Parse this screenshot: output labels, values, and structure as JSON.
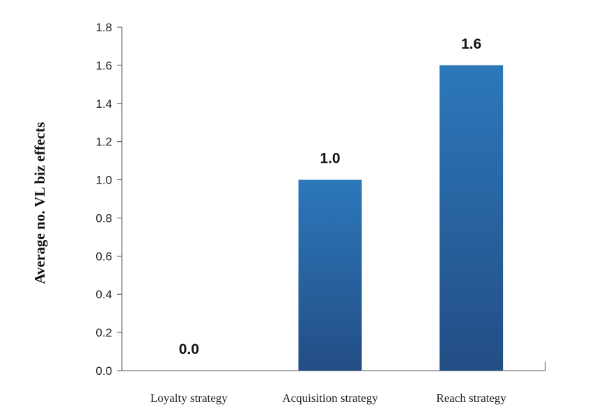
{
  "chart_data": {
    "type": "bar",
    "categories": [
      "Loyalty strategy",
      "Acquisition strategy",
      "Reach strategy"
    ],
    "values": [
      0.0,
      1.0,
      1.6
    ],
    "data_labels": [
      "0.0",
      "1.0",
      "1.6"
    ],
    "title": "",
    "xlabel": "",
    "ylabel": "Average no. VL biz effects",
    "ylim": [
      0,
      1.8
    ],
    "y_ticks": [
      "0.0",
      "0.2",
      "0.4",
      "0.6",
      "0.8",
      "1.0",
      "1.2",
      "1.4",
      "1.6",
      "1.8"
    ],
    "grid": false,
    "legend": "none",
    "colors": {
      "bar_top": "#2c78bb",
      "bar_bottom": "#234d85"
    }
  }
}
